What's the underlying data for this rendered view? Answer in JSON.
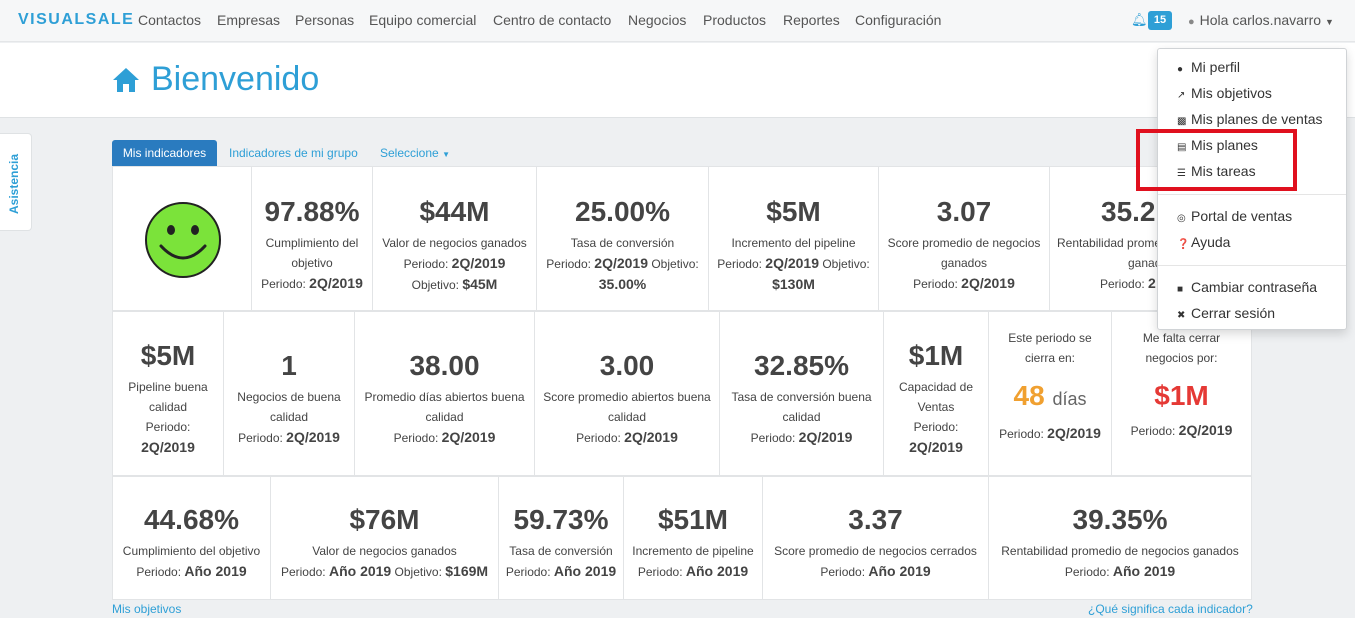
{
  "app": {
    "logo": "VISUALSALE"
  },
  "nav": {
    "items": [
      "Contactos",
      "Empresas",
      "Personas",
      "Equipo comercial",
      "Centro de contacto",
      "Negocios",
      "Productos",
      "Reportes",
      "Configuración"
    ],
    "notifications": "15",
    "user": "Hola carlos.navarro"
  },
  "page": {
    "title": "Bienvenido"
  },
  "side_tab": "Asistencia",
  "tabs": {
    "active": "Mis indicadores",
    "group": "Indicadores de mi grupo",
    "select": "Seleccione"
  },
  "row1": [
    {
      "value": "97.88%",
      "label1": "Cumplimiento del",
      "label2": "objetivo",
      "period": "Periodo: ",
      "period_val": "2Q/2019"
    },
    {
      "value": "$44M",
      "label1": "Valor de negocios ganados",
      "label2": "Periodo: ",
      "label2b": "2Q/2019",
      "period": "Objetivo: ",
      "period_val": "$45M"
    },
    {
      "value": "25.00%",
      "label1": "Tasa de conversión",
      "label2": "Periodo: ",
      "label2b": "2Q/2019",
      "label2c": " Objetivo:",
      "period_val": "35.00%"
    },
    {
      "value": "$5M",
      "label1": "Incremento del pipeline",
      "label2": "Periodo: ",
      "label2b": "2Q/2019",
      "label2c": " Objetivo:",
      "period_val": "$130M"
    },
    {
      "value": "3.07",
      "label1": "Score promedio de negocios",
      "label2": "ganados",
      "period": "Periodo: ",
      "period_val": "2Q/2019"
    },
    {
      "value": "35.2",
      "label1": "Rentabilidad promedio",
      "label2": "ganad",
      "period": "Periodo: ",
      "period_val": "2"
    }
  ],
  "row2": [
    {
      "value": "$5M",
      "label1": "Pipeline buena",
      "label2": "calidad",
      "label3": "Periodo:",
      "period_val": "2Q/2019"
    },
    {
      "value": "1",
      "label1": "Negocios de buena",
      "label2": "calidad",
      "period": "Periodo: ",
      "period_val": "2Q/2019"
    },
    {
      "value": "38.00",
      "label1": "Promedio días abiertos buena",
      "label2": "calidad",
      "period": "Periodo: ",
      "period_val": "2Q/2019"
    },
    {
      "value": "3.00",
      "label1": "Score promedio abiertos buena",
      "label2": "calidad",
      "period": "Periodo: ",
      "period_val": "2Q/2019"
    },
    {
      "value": "32.85%",
      "label1": "Tasa de conversión buena",
      "label2": "calidad",
      "period": "Periodo: ",
      "period_val": "2Q/2019"
    },
    {
      "value": "$1M",
      "label1": "Capacidad de",
      "label2": "Ventas",
      "label3": "Periodo:",
      "period_val": "2Q/2019"
    },
    {
      "top1": "Este periodo se",
      "top2": "cierra en:",
      "value": "48",
      "unit": "días",
      "period": "Periodo: ",
      "period_val": "2Q/2019"
    },
    {
      "top1": "Me falta cerrar",
      "top2": "negocios por:",
      "value": "$1M",
      "period": "Periodo: ",
      "period_val": "2Q/2019"
    }
  ],
  "row3": [
    {
      "value": "44.68%",
      "label1": "Cumplimiento del objetivo",
      "period": "Periodo: ",
      "period_val": "Año 2019"
    },
    {
      "value": "$76M",
      "label1": "Valor de negocios ganados",
      "period": "Periodo: ",
      "period_val": "Año 2019",
      "extra": " Objetivo: ",
      "extra_val": "$169M"
    },
    {
      "value": "59.73%",
      "label1": "Tasa de conversión",
      "period": "Periodo: ",
      "period_val": "Año 2019"
    },
    {
      "value": "$51M",
      "label1": "Incremento de pipeline",
      "period": "Periodo: ",
      "period_val": "Año 2019"
    },
    {
      "value": "3.37",
      "label1": "Score promedio de negocios cerrados",
      "period": "Periodo: ",
      "period_val": "Año 2019"
    },
    {
      "value": "39.35%",
      "label1": "Rentabilidad promedio de negocios ganados",
      "period": "Periodo: ",
      "period_val": "Año 2019"
    }
  ],
  "footer": {
    "left": "Mis objetivos",
    "right": "¿Qué significa cada indicador?"
  },
  "menu": {
    "items": [
      "Mi perfil",
      "Mis objetivos",
      "Mis planes de ventas",
      "Mis planes",
      "Mis tareas",
      "Portal de ventas",
      "Ayuda",
      "Cambiar contraseña",
      "Cerrar sesión"
    ]
  },
  "colors": {
    "brand": "#2e9fd6",
    "active_tab": "#2a7bbf",
    "orange": "#f0a030",
    "red": "#e53935",
    "highlight": "#e0101e",
    "smiley": "#7be33a"
  }
}
